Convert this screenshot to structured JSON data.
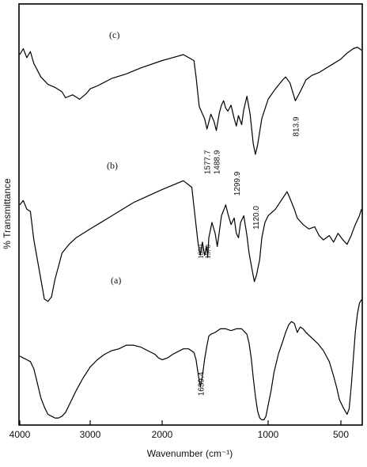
{
  "chart_data": {
    "type": "line",
    "title": "",
    "xlabel": "Wavenumber (cm⁻¹)",
    "ylabel": "% Transmittance",
    "x_reversed": true,
    "xlim": [
      4000,
      400
    ],
    "x_ticks": [
      4000,
      3000,
      2000,
      1000,
      500
    ],
    "x_tick_labels": [
      "4000",
      "3000",
      "2000",
      "1000",
      "500"
    ],
    "y_ticks_shown": false,
    "grid": false,
    "legend": "none",
    "series": [
      {
        "name": "(c)",
        "points": [
          [
            4000,
            75
          ],
          [
            3950,
            79
          ],
          [
            3900,
            73
          ],
          [
            3850,
            77
          ],
          [
            3800,
            69
          ],
          [
            3700,
            60
          ],
          [
            3600,
            55
          ],
          [
            3500,
            53
          ],
          [
            3400,
            50
          ],
          [
            3350,
            46
          ],
          [
            3250,
            48
          ],
          [
            3150,
            45
          ],
          [
            3050,
            49
          ],
          [
            3000,
            52
          ],
          [
            2900,
            54
          ],
          [
            2700,
            59
          ],
          [
            2500,
            62
          ],
          [
            2300,
            66
          ],
          [
            2000,
            71
          ],
          [
            1900,
            73
          ],
          [
            1800,
            75
          ],
          [
            1700,
            71
          ],
          [
            1680,
            60
          ],
          [
            1650,
            40
          ],
          [
            1600,
            32
          ],
          [
            1577,
            25
          ],
          [
            1540,
            35
          ],
          [
            1510,
            30
          ],
          [
            1489,
            24
          ],
          [
            1460,
            36
          ],
          [
            1440,
            41
          ],
          [
            1420,
            44
          ],
          [
            1400,
            39
          ],
          [
            1380,
            37
          ],
          [
            1350,
            41
          ],
          [
            1320,
            32
          ],
          [
            1300,
            27
          ],
          [
            1280,
            34
          ],
          [
            1250,
            28
          ],
          [
            1230,
            38
          ],
          [
            1200,
            47
          ],
          [
            1170,
            35
          ],
          [
            1140,
            15
          ],
          [
            1120,
            8
          ],
          [
            1100,
            14
          ],
          [
            1060,
            32
          ],
          [
            1000,
            45
          ],
          [
            950,
            52
          ],
          [
            900,
            58
          ],
          [
            880,
            60
          ],
          [
            850,
            56
          ],
          [
            813,
            44
          ],
          [
            780,
            50
          ],
          [
            740,
            58
          ],
          [
            700,
            61
          ],
          [
            650,
            63
          ],
          [
            600,
            66
          ],
          [
            550,
            69
          ],
          [
            500,
            72
          ],
          [
            470,
            76
          ],
          [
            440,
            79
          ],
          [
            420,
            80
          ],
          [
            400,
            78
          ]
        ],
        "peak_labels": [
          "1577.7",
          "1488.9",
          "1299.9",
          "1120.0",
          "813.9"
        ]
      },
      {
        "name": "(b)",
        "points": [
          [
            4000,
            60
          ],
          [
            3950,
            62
          ],
          [
            3900,
            58
          ],
          [
            3850,
            57
          ],
          [
            3800,
            44
          ],
          [
            3700,
            26
          ],
          [
            3650,
            17
          ],
          [
            3600,
            16
          ],
          [
            3550,
            18
          ],
          [
            3500,
            26
          ],
          [
            3450,
            32
          ],
          [
            3400,
            38
          ],
          [
            3300,
            42
          ],
          [
            3200,
            45
          ],
          [
            3000,
            49
          ],
          [
            2800,
            53
          ],
          [
            2600,
            57
          ],
          [
            2400,
            61
          ],
          [
            2200,
            64
          ],
          [
            2000,
            67
          ],
          [
            1900,
            69
          ],
          [
            1800,
            71
          ],
          [
            1720,
            68
          ],
          [
            1690,
            55
          ],
          [
            1660,
            42
          ],
          [
            1640,
            37
          ],
          [
            1620,
            43
          ],
          [
            1600,
            37
          ],
          [
            1580,
            41
          ],
          [
            1570,
            36
          ],
          [
            1560,
            45
          ],
          [
            1530,
            52
          ],
          [
            1500,
            47
          ],
          [
            1480,
            41
          ],
          [
            1460,
            48
          ],
          [
            1440,
            55
          ],
          [
            1400,
            60
          ],
          [
            1380,
            56
          ],
          [
            1350,
            51
          ],
          [
            1320,
            54
          ],
          [
            1300,
            47
          ],
          [
            1280,
            45
          ],
          [
            1260,
            52
          ],
          [
            1230,
            55
          ],
          [
            1200,
            46
          ],
          [
            1180,
            38
          ],
          [
            1150,
            30
          ],
          [
            1130,
            25
          ],
          [
            1110,
            28
          ],
          [
            1080,
            35
          ],
          [
            1060,
            45
          ],
          [
            1030,
            52
          ],
          [
            1000,
            55
          ],
          [
            950,
            58
          ],
          [
            900,
            63
          ],
          [
            870,
            66
          ],
          [
            850,
            63
          ],
          [
            820,
            58
          ],
          [
            800,
            54
          ],
          [
            760,
            51
          ],
          [
            720,
            49
          ],
          [
            680,
            50
          ],
          [
            650,
            46
          ],
          [
            620,
            44
          ],
          [
            580,
            46
          ],
          [
            550,
            43
          ],
          [
            520,
            47
          ],
          [
            490,
            44
          ],
          [
            470,
            42
          ],
          [
            450,
            46
          ],
          [
            430,
            51
          ],
          [
            410,
            55
          ],
          [
            400,
            58
          ]
        ],
        "peak_labels": [
          "1600",
          "1570"
        ]
      },
      {
        "name": "(a)",
        "points": [
          [
            4000,
            37
          ],
          [
            3950,
            36
          ],
          [
            3900,
            35
          ],
          [
            3850,
            34
          ],
          [
            3800,
            30
          ],
          [
            3750,
            22
          ],
          [
            3700,
            14
          ],
          [
            3650,
            9
          ],
          [
            3600,
            5
          ],
          [
            3550,
            4
          ],
          [
            3500,
            3
          ],
          [
            3450,
            3
          ],
          [
            3400,
            4
          ],
          [
            3350,
            6
          ],
          [
            3300,
            10
          ],
          [
            3200,
            18
          ],
          [
            3100,
            25
          ],
          [
            3000,
            31
          ],
          [
            2900,
            35
          ],
          [
            2800,
            38
          ],
          [
            2700,
            40
          ],
          [
            2600,
            41
          ],
          [
            2500,
            43
          ],
          [
            2400,
            43
          ],
          [
            2300,
            42
          ],
          [
            2200,
            40
          ],
          [
            2100,
            38
          ],
          [
            2050,
            36
          ],
          [
            2000,
            35
          ],
          [
            1950,
            36
          ],
          [
            1900,
            38
          ],
          [
            1800,
            41
          ],
          [
            1750,
            41
          ],
          [
            1700,
            39
          ],
          [
            1680,
            35
          ],
          [
            1660,
            27
          ],
          [
            1639,
            20
          ],
          [
            1620,
            26
          ],
          [
            1600,
            35
          ],
          [
            1580,
            42
          ],
          [
            1560,
            48
          ],
          [
            1540,
            49
          ],
          [
            1500,
            50
          ],
          [
            1450,
            52
          ],
          [
            1400,
            52
          ],
          [
            1350,
            51
          ],
          [
            1300,
            52
          ],
          [
            1250,
            52
          ],
          [
            1200,
            49
          ],
          [
            1180,
            44
          ],
          [
            1160,
            36
          ],
          [
            1140,
            25
          ],
          [
            1120,
            15
          ],
          [
            1100,
            7
          ],
          [
            1080,
            3
          ],
          [
            1060,
            2
          ],
          [
            1040,
            2
          ],
          [
            1020,
            4
          ],
          [
            1000,
            10
          ],
          [
            980,
            18
          ],
          [
            960,
            28
          ],
          [
            930,
            38
          ],
          [
            900,
            45
          ],
          [
            880,
            50
          ],
          [
            860,
            54
          ],
          [
            840,
            56
          ],
          [
            820,
            55
          ],
          [
            800,
            50
          ],
          [
            780,
            53
          ],
          [
            760,
            52
          ],
          [
            740,
            50
          ],
          [
            700,
            47
          ],
          [
            660,
            44
          ],
          [
            620,
            40
          ],
          [
            580,
            34
          ],
          [
            550,
            26
          ],
          [
            530,
            20
          ],
          [
            510,
            13
          ],
          [
            490,
            9
          ],
          [
            480,
            7
          ],
          [
            470,
            5
          ],
          [
            460,
            8
          ],
          [
            450,
            20
          ],
          [
            440,
            35
          ],
          [
            430,
            50
          ],
          [
            420,
            60
          ],
          [
            410,
            66
          ],
          [
            400,
            68
          ]
        ],
        "peak_labels": [
          "1639.4"
        ]
      }
    ]
  }
}
